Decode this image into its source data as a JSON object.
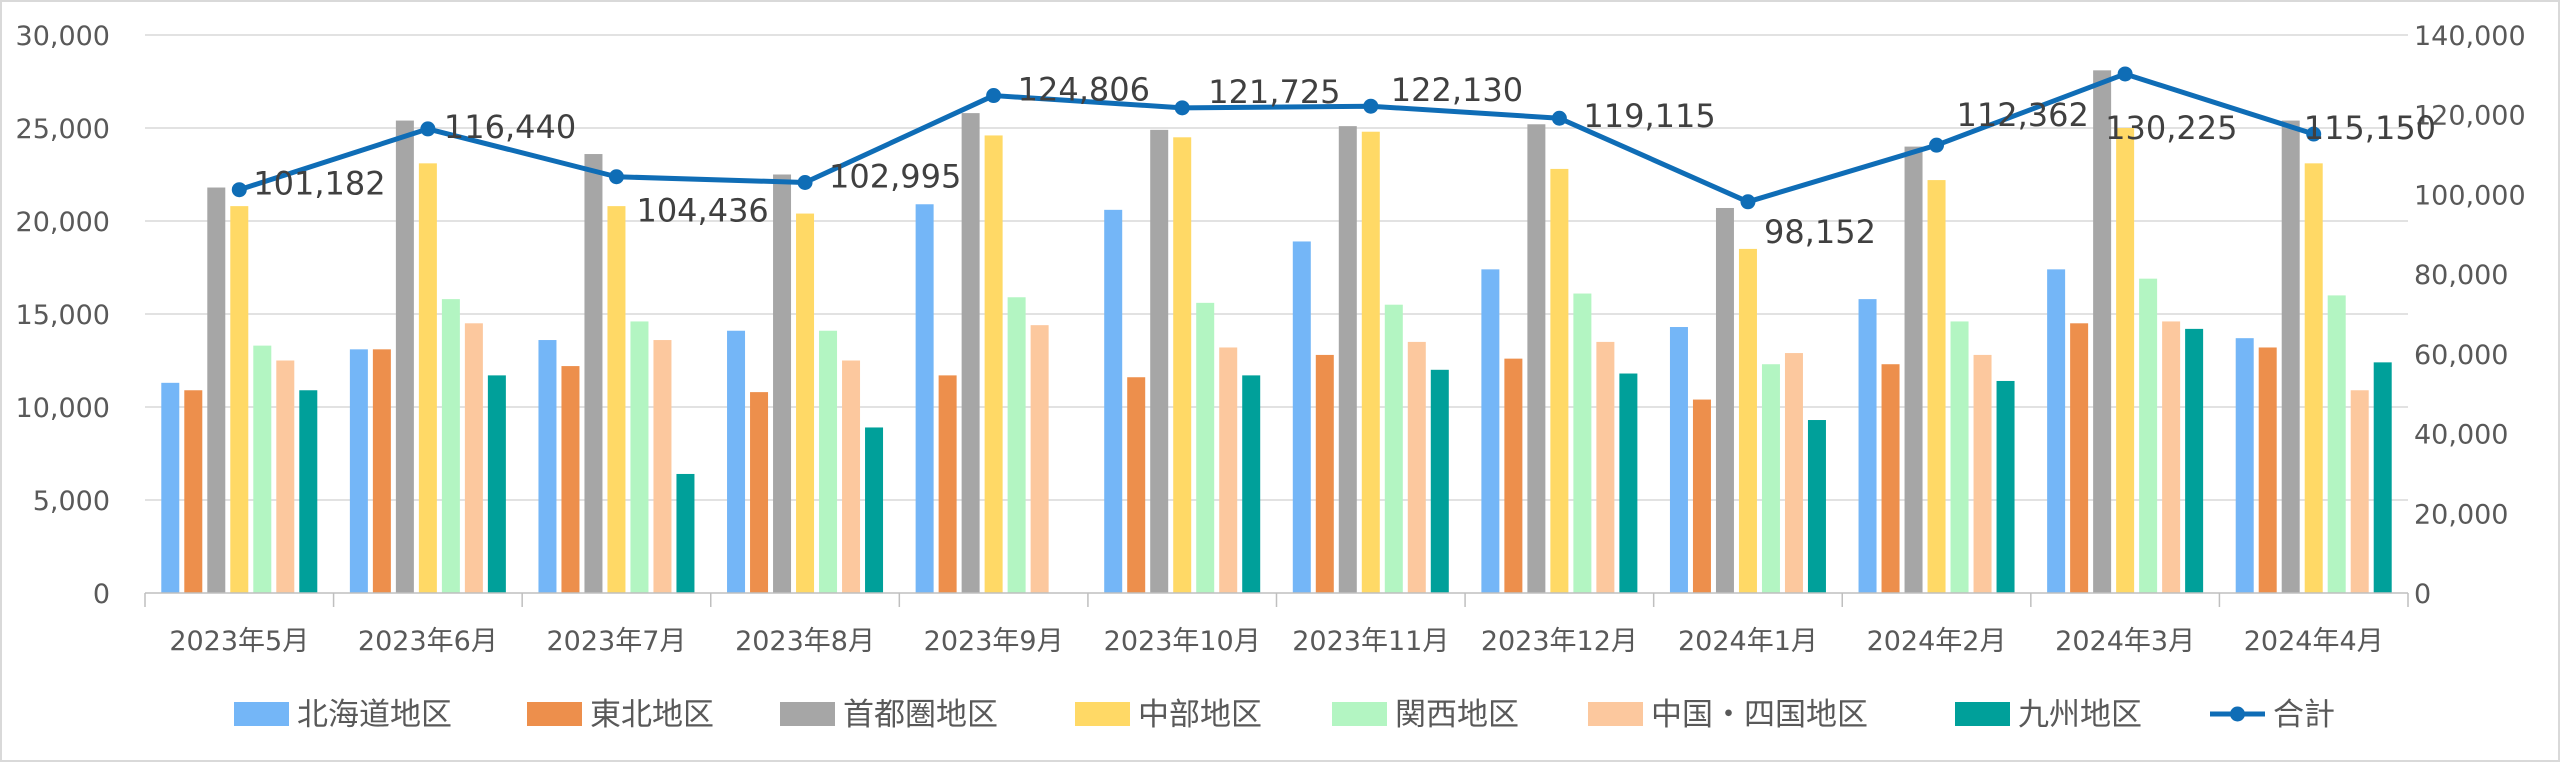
{
  "chart_data": {
    "type": "bar+line",
    "title": "",
    "categories": [
      "2023年5月",
      "2023年6月",
      "2023年7月",
      "2023年8月",
      "2023年9月",
      "2023年10月",
      "2023年11月",
      "2023年12月",
      "2024年1月",
      "2024年2月",
      "2024年3月",
      "2024年4月"
    ],
    "series": [
      {
        "name": "北海道地区",
        "type": "bar",
        "axis": "left",
        "color": "#74b6f7",
        "values": [
          11300,
          13100,
          13600,
          14100,
          20900,
          20600,
          18900,
          17400,
          14300,
          15800,
          17400,
          13700
        ]
      },
      {
        "name": "東北地区",
        "type": "bar",
        "axis": "left",
        "color": "#ed8f4c",
        "values": [
          10900,
          13100,
          12200,
          10800,
          11700,
          11600,
          12800,
          12600,
          10400,
          12300,
          14500,
          13200
        ]
      },
      {
        "name": "首都圏地区",
        "type": "bar",
        "axis": "left",
        "color": "#a6a6a6",
        "values": [
          21800,
          25400,
          23600,
          22500,
          25800,
          24900,
          25100,
          25200,
          20700,
          24000,
          28100,
          25400
        ]
      },
      {
        "name": "中部地区",
        "type": "bar",
        "axis": "left",
        "color": "#ffd966",
        "values": [
          20800,
          23100,
          20800,
          20400,
          24600,
          24500,
          24800,
          22800,
          18500,
          22200,
          25000,
          23100
        ]
      },
      {
        "name": "関西地区",
        "type": "bar",
        "axis": "left",
        "color": "#b3f5c2",
        "values": [
          13300,
          15800,
          14600,
          14100,
          15900,
          15600,
          15500,
          16100,
          12300,
          14600,
          16900,
          16000
        ]
      },
      {
        "name": "中国・四国地区",
        "type": "bar",
        "axis": "left",
        "color": "#fcc89e",
        "values": [
          12500,
          14500,
          13600,
          12500,
          14400,
          13200,
          13500,
          13500,
          12900,
          12800,
          14600,
          10900
        ]
      },
      {
        "name": "九州地区",
        "type": "bar",
        "axis": "left",
        "color": "#00a09a",
        "values": [
          10900,
          11700,
          6400,
          8900,
          0,
          11700,
          12000,
          11800,
          9300,
          11400,
          14200,
          12400
        ]
      },
      {
        "name": "合計",
        "type": "line",
        "axis": "right",
        "color": "#0f6db6",
        "values": [
          101182,
          116440,
          104436,
          102995,
          124806,
          121725,
          122130,
          119115,
          98152,
          112362,
          130225,
          115150
        ],
        "labels": [
          "101,182",
          "116,440",
          "104,436",
          "102,995",
          "124,806",
          "121,725",
          "122,130",
          "119,115",
          "98,152",
          "112,362",
          "130,225",
          "115,150"
        ]
      }
    ],
    "y_left": {
      "min": 0,
      "max": 30000,
      "ticks": [
        "0",
        "5,000",
        "10,000",
        "15,000",
        "20,000",
        "25,000",
        "30,000"
      ]
    },
    "y_right": {
      "min": 0,
      "max": 140000,
      "ticks": [
        "0",
        "20,000",
        "40,000",
        "60,000",
        "80,000",
        "100,000",
        "120,000",
        "140,000"
      ]
    },
    "grid": true,
    "legend": "bottom"
  }
}
